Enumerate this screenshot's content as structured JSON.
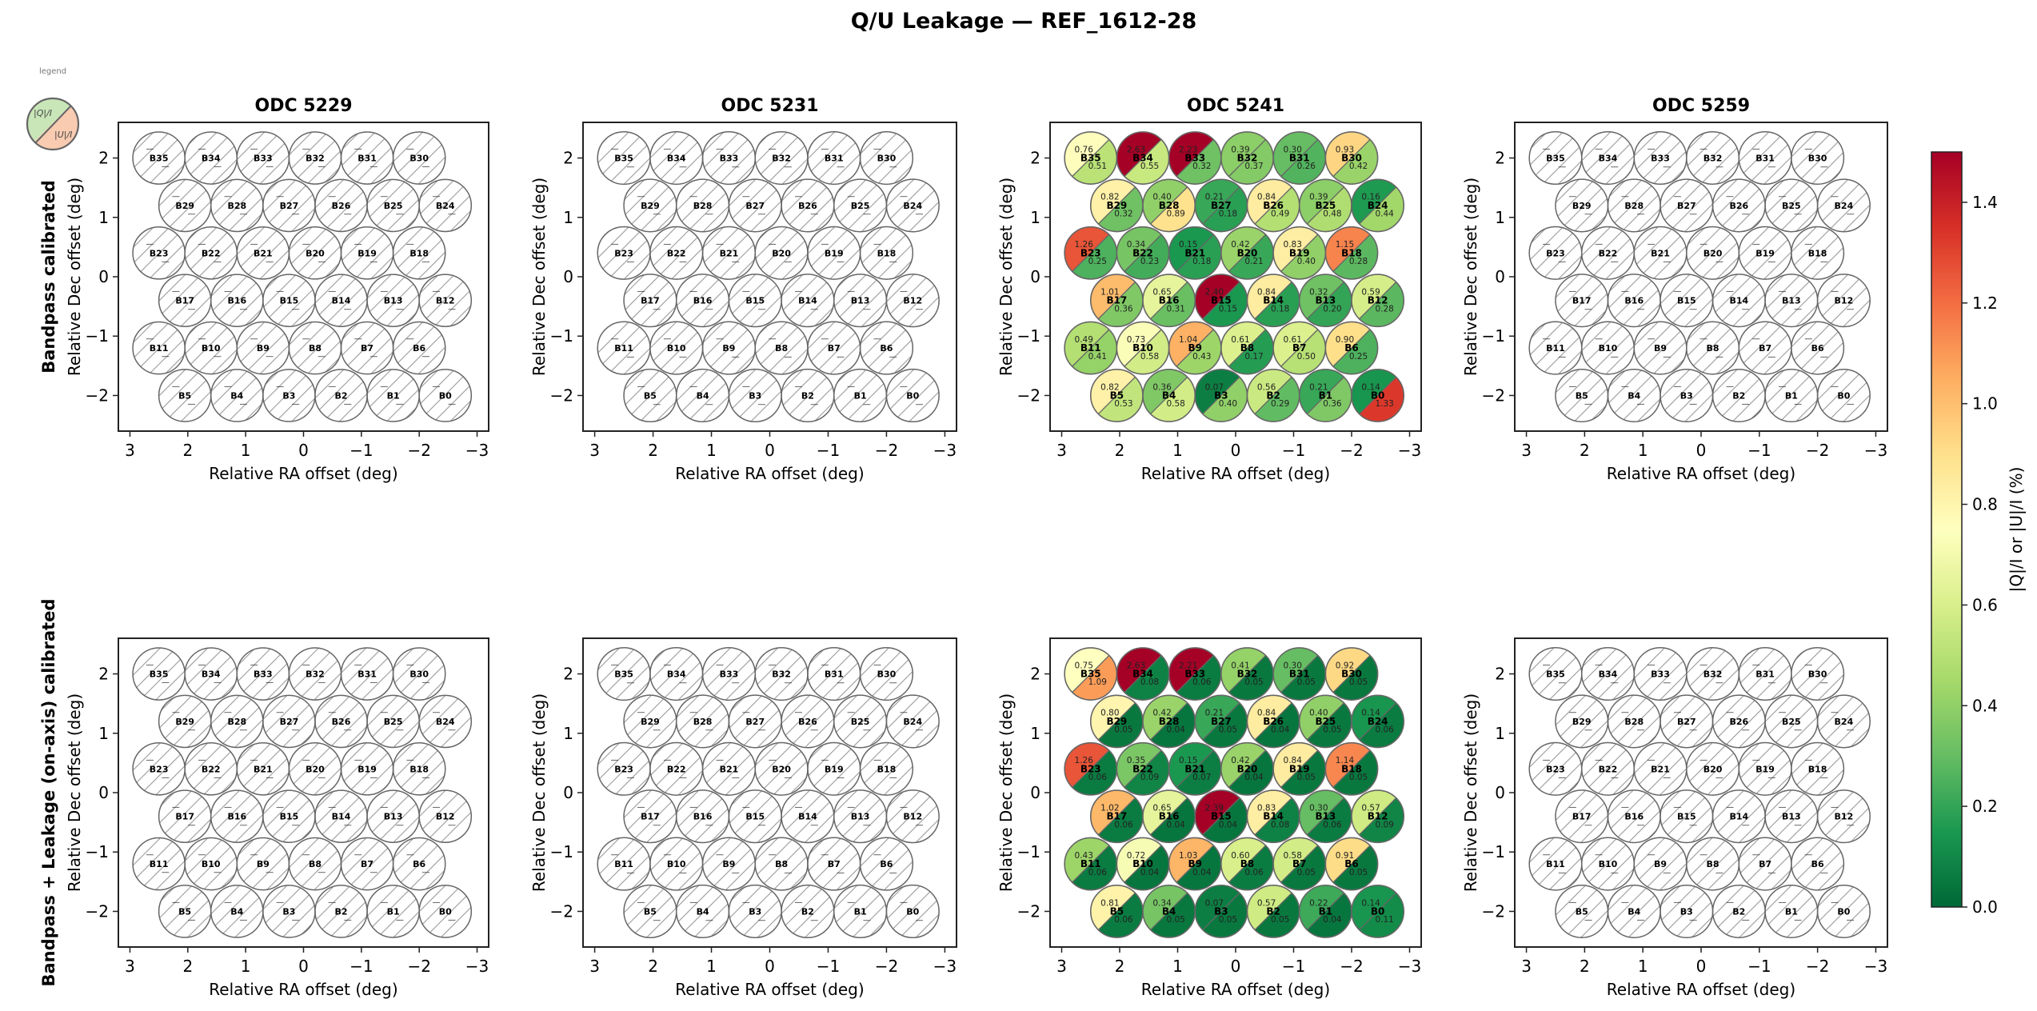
{
  "title": "Q/U Leakage — REF_1612-28",
  "legend": {
    "caption": "legend",
    "upper_label": "|Q|/I",
    "lower_label": "|U|/I",
    "upper_color": "#c9e6b8",
    "lower_color": "#f9cbb0"
  },
  "colorbar": {
    "label": "|Q|/I  or  |U|/I  (%)",
    "ticks": [
      "0.0",
      "0.2",
      "0.4",
      "0.6",
      "0.8",
      "1.0",
      "1.2",
      "1.4"
    ],
    "tick_values": [
      0.0,
      0.2,
      0.4,
      0.6,
      0.8,
      1.0,
      1.2,
      1.4
    ],
    "range": [
      0,
      1.5
    ],
    "colormap": "RdYlGn_r",
    "stops": [
      "#006837",
      "#1a9850",
      "#66bd63",
      "#a6d96a",
      "#d9ef8b",
      "#ffffbf",
      "#fee08b",
      "#fdae61",
      "#f46d43",
      "#d73027",
      "#a50026"
    ]
  },
  "row_labels": [
    "Bandpass calibrated",
    "Bandpass + Leakage (on-axis) calibrated"
  ],
  "columns": [
    "ODC 5229",
    "ODC 5231",
    "ODC 5241",
    "ODC 5259"
  ],
  "axes": {
    "xlabel": "Relative RA offset (deg)",
    "ylabel": "Relative Dec offset (deg)",
    "xticks": [
      "3",
      "2",
      "1",
      "0",
      "−1",
      "−2",
      "−3"
    ],
    "xtick_values": [
      3,
      2,
      1,
      0,
      -1,
      -2,
      -3
    ],
    "yticks": [
      "2",
      "1",
      "0",
      "−1",
      "−2"
    ],
    "ytick_values": [
      2,
      1,
      0,
      -1,
      -2
    ],
    "xlim": [
      3.2,
      -3.2
    ],
    "ylim": [
      -2.6,
      2.6
    ]
  },
  "missing_marker": "—",
  "chart_data": {
    "type": "scatter",
    "title": "Q/U Leakage — REF_1612-28",
    "xlabel": "Relative RA offset (deg)",
    "ylabel": "Relative Dec offset (deg)",
    "xlim": [
      3.2,
      -3.2
    ],
    "ylim": [
      -2.6,
      2.6
    ],
    "value_unit": "%",
    "beams": [
      {
        "id": "B35",
        "ra": 2.5,
        "dec": 2.0
      },
      {
        "id": "B34",
        "ra": 1.6,
        "dec": 2.0
      },
      {
        "id": "B33",
        "ra": 0.7,
        "dec": 2.0
      },
      {
        "id": "B32",
        "ra": -0.2,
        "dec": 2.0
      },
      {
        "id": "B31",
        "ra": -1.1,
        "dec": 2.0
      },
      {
        "id": "B30",
        "ra": -2.0,
        "dec": 2.0
      },
      {
        "id": "B29",
        "ra": 2.05,
        "dec": 1.2
      },
      {
        "id": "B28",
        "ra": 1.15,
        "dec": 1.2
      },
      {
        "id": "B27",
        "ra": 0.25,
        "dec": 1.2
      },
      {
        "id": "B26",
        "ra": -0.65,
        "dec": 1.2
      },
      {
        "id": "B25",
        "ra": -1.55,
        "dec": 1.2
      },
      {
        "id": "B24",
        "ra": -2.45,
        "dec": 1.2
      },
      {
        "id": "B23",
        "ra": 2.5,
        "dec": 0.4
      },
      {
        "id": "B22",
        "ra": 1.6,
        "dec": 0.4
      },
      {
        "id": "B21",
        "ra": 0.7,
        "dec": 0.4
      },
      {
        "id": "B20",
        "ra": -0.2,
        "dec": 0.4
      },
      {
        "id": "B19",
        "ra": -1.1,
        "dec": 0.4
      },
      {
        "id": "B18",
        "ra": -2.0,
        "dec": 0.4
      },
      {
        "id": "B17",
        "ra": 2.05,
        "dec": -0.4
      },
      {
        "id": "B16",
        "ra": 1.15,
        "dec": -0.4
      },
      {
        "id": "B15",
        "ra": 0.25,
        "dec": -0.4
      },
      {
        "id": "B14",
        "ra": -0.65,
        "dec": -0.4
      },
      {
        "id": "B13",
        "ra": -1.55,
        "dec": -0.4
      },
      {
        "id": "B12",
        "ra": -2.45,
        "dec": -0.4
      },
      {
        "id": "B11",
        "ra": 2.5,
        "dec": -1.2
      },
      {
        "id": "B10",
        "ra": 1.6,
        "dec": -1.2
      },
      {
        "id": "B9",
        "ra": 0.7,
        "dec": -1.2
      },
      {
        "id": "B8",
        "ra": -0.2,
        "dec": -1.2
      },
      {
        "id": "B7",
        "ra": -1.1,
        "dec": -1.2
      },
      {
        "id": "B6",
        "ra": -2.0,
        "dec": -1.2
      },
      {
        "id": "B5",
        "ra": 2.05,
        "dec": -2.0
      },
      {
        "id": "B4",
        "ra": 1.15,
        "dec": -2.0
      },
      {
        "id": "B3",
        "ra": 0.25,
        "dec": -2.0
      },
      {
        "id": "B2",
        "ra": -0.65,
        "dec": -2.0
      },
      {
        "id": "B1",
        "ra": -1.55,
        "dec": -2.0
      },
      {
        "id": "B0",
        "ra": -2.45,
        "dec": -2.0
      }
    ],
    "panels": [
      {
        "row": 0,
        "odc": "ODC 5229",
        "q": null,
        "u": null
      },
      {
        "row": 0,
        "odc": "ODC 5231",
        "q": null,
        "u": null
      },
      {
        "row": 0,
        "odc": "ODC 5241",
        "q": {
          "B35": 0.76,
          "B34": 2.63,
          "B33": 2.23,
          "B32": 0.39,
          "B31": 0.3,
          "B30": 0.93,
          "B29": 0.82,
          "B28": 0.4,
          "B27": 0.21,
          "B26": 0.84,
          "B25": 0.39,
          "B24": 0.16,
          "B23": 1.26,
          "B22": 0.34,
          "B21": 0.15,
          "B20": 0.42,
          "B19": 0.83,
          "B18": 1.15,
          "B17": 1.01,
          "B16": 0.65,
          "B15": 2.4,
          "B14": 0.84,
          "B13": 0.32,
          "B12": 0.59,
          "B11": 0.49,
          "B10": 0.73,
          "B9": 1.04,
          "B8": 0.61,
          "B7": 0.61,
          "B6": 0.9,
          "B5": 0.82,
          "B4": 0.36,
          "B3": 0.07,
          "B2": 0.56,
          "B1": 0.21,
          "B0": 0.14
        },
        "u": {
          "B35": 0.51,
          "B34": 0.55,
          "B33": 0.32,
          "B32": 0.37,
          "B31": 0.26,
          "B30": 0.42,
          "B29": 0.32,
          "B28": 0.89,
          "B27": 0.18,
          "B26": 0.49,
          "B25": 0.48,
          "B24": 0.44,
          "B23": 0.25,
          "B22": 0.23,
          "B21": 0.18,
          "B20": 0.21,
          "B19": 0.4,
          "B18": 0.28,
          "B17": 0.36,
          "B16": 0.31,
          "B15": 0.15,
          "B14": 0.18,
          "B13": 0.2,
          "B12": 0.28,
          "B11": 0.41,
          "B10": 0.58,
          "B9": 0.43,
          "B8": 0.17,
          "B7": 0.5,
          "B6": 0.25,
          "B5": 0.53,
          "B4": 0.58,
          "B3": 0.4,
          "B2": 0.29,
          "B1": 0.36,
          "B0": 1.33
        }
      },
      {
        "row": 0,
        "odc": "ODC 5259",
        "q": null,
        "u": null
      },
      {
        "row": 1,
        "odc": "ODC 5229",
        "q": null,
        "u": null
      },
      {
        "row": 1,
        "odc": "ODC 5231",
        "q": null,
        "u": null
      },
      {
        "row": 1,
        "odc": "ODC 5241",
        "q": {
          "B35": 0.75,
          "B34": 2.63,
          "B33": 2.21,
          "B32": 0.41,
          "B31": 0.3,
          "B30": 0.92,
          "B29": 0.8,
          "B28": 0.42,
          "B27": 0.21,
          "B26": 0.84,
          "B25": 0.4,
          "B24": 0.14,
          "B23": 1.26,
          "B22": 0.35,
          "B21": 0.15,
          "B20": 0.42,
          "B19": 0.84,
          "B18": 1.14,
          "B17": 1.02,
          "B16": 0.65,
          "B15": 2.39,
          "B14": 0.83,
          "B13": 0.3,
          "B12": 0.57,
          "B11": 0.43,
          "B10": 0.72,
          "B9": 1.03,
          "B8": 0.6,
          "B7": 0.58,
          "B6": 0.91,
          "B5": 0.81,
          "B4": 0.34,
          "B3": 0.07,
          "B2": 0.57,
          "B1": 0.22,
          "B0": 0.14
        },
        "u": {
          "B35": 1.09,
          "B34": 0.08,
          "B33": 0.06,
          "B32": 0.05,
          "B31": 0.05,
          "B30": 0.05,
          "B29": 0.05,
          "B28": 0.04,
          "B27": 0.05,
          "B26": 0.04,
          "B25": 0.05,
          "B24": 0.06,
          "B23": 0.06,
          "B22": 0.09,
          "B21": 0.07,
          "B20": 0.04,
          "B19": 0.05,
          "B18": 0.05,
          "B17": 0.06,
          "B16": 0.04,
          "B15": 0.04,
          "B14": 0.08,
          "B13": 0.06,
          "B12": 0.09,
          "B11": 0.06,
          "B10": 0.04,
          "B9": 0.04,
          "B8": 0.06,
          "B7": 0.05,
          "B6": 0.05,
          "B5": 0.06,
          "B4": 0.05,
          "B3": 0.05,
          "B2": 0.05,
          "B1": 0.04,
          "B0": 0.11
        }
      },
      {
        "row": 1,
        "odc": "ODC 5259",
        "q": null,
        "u": null
      }
    ]
  }
}
